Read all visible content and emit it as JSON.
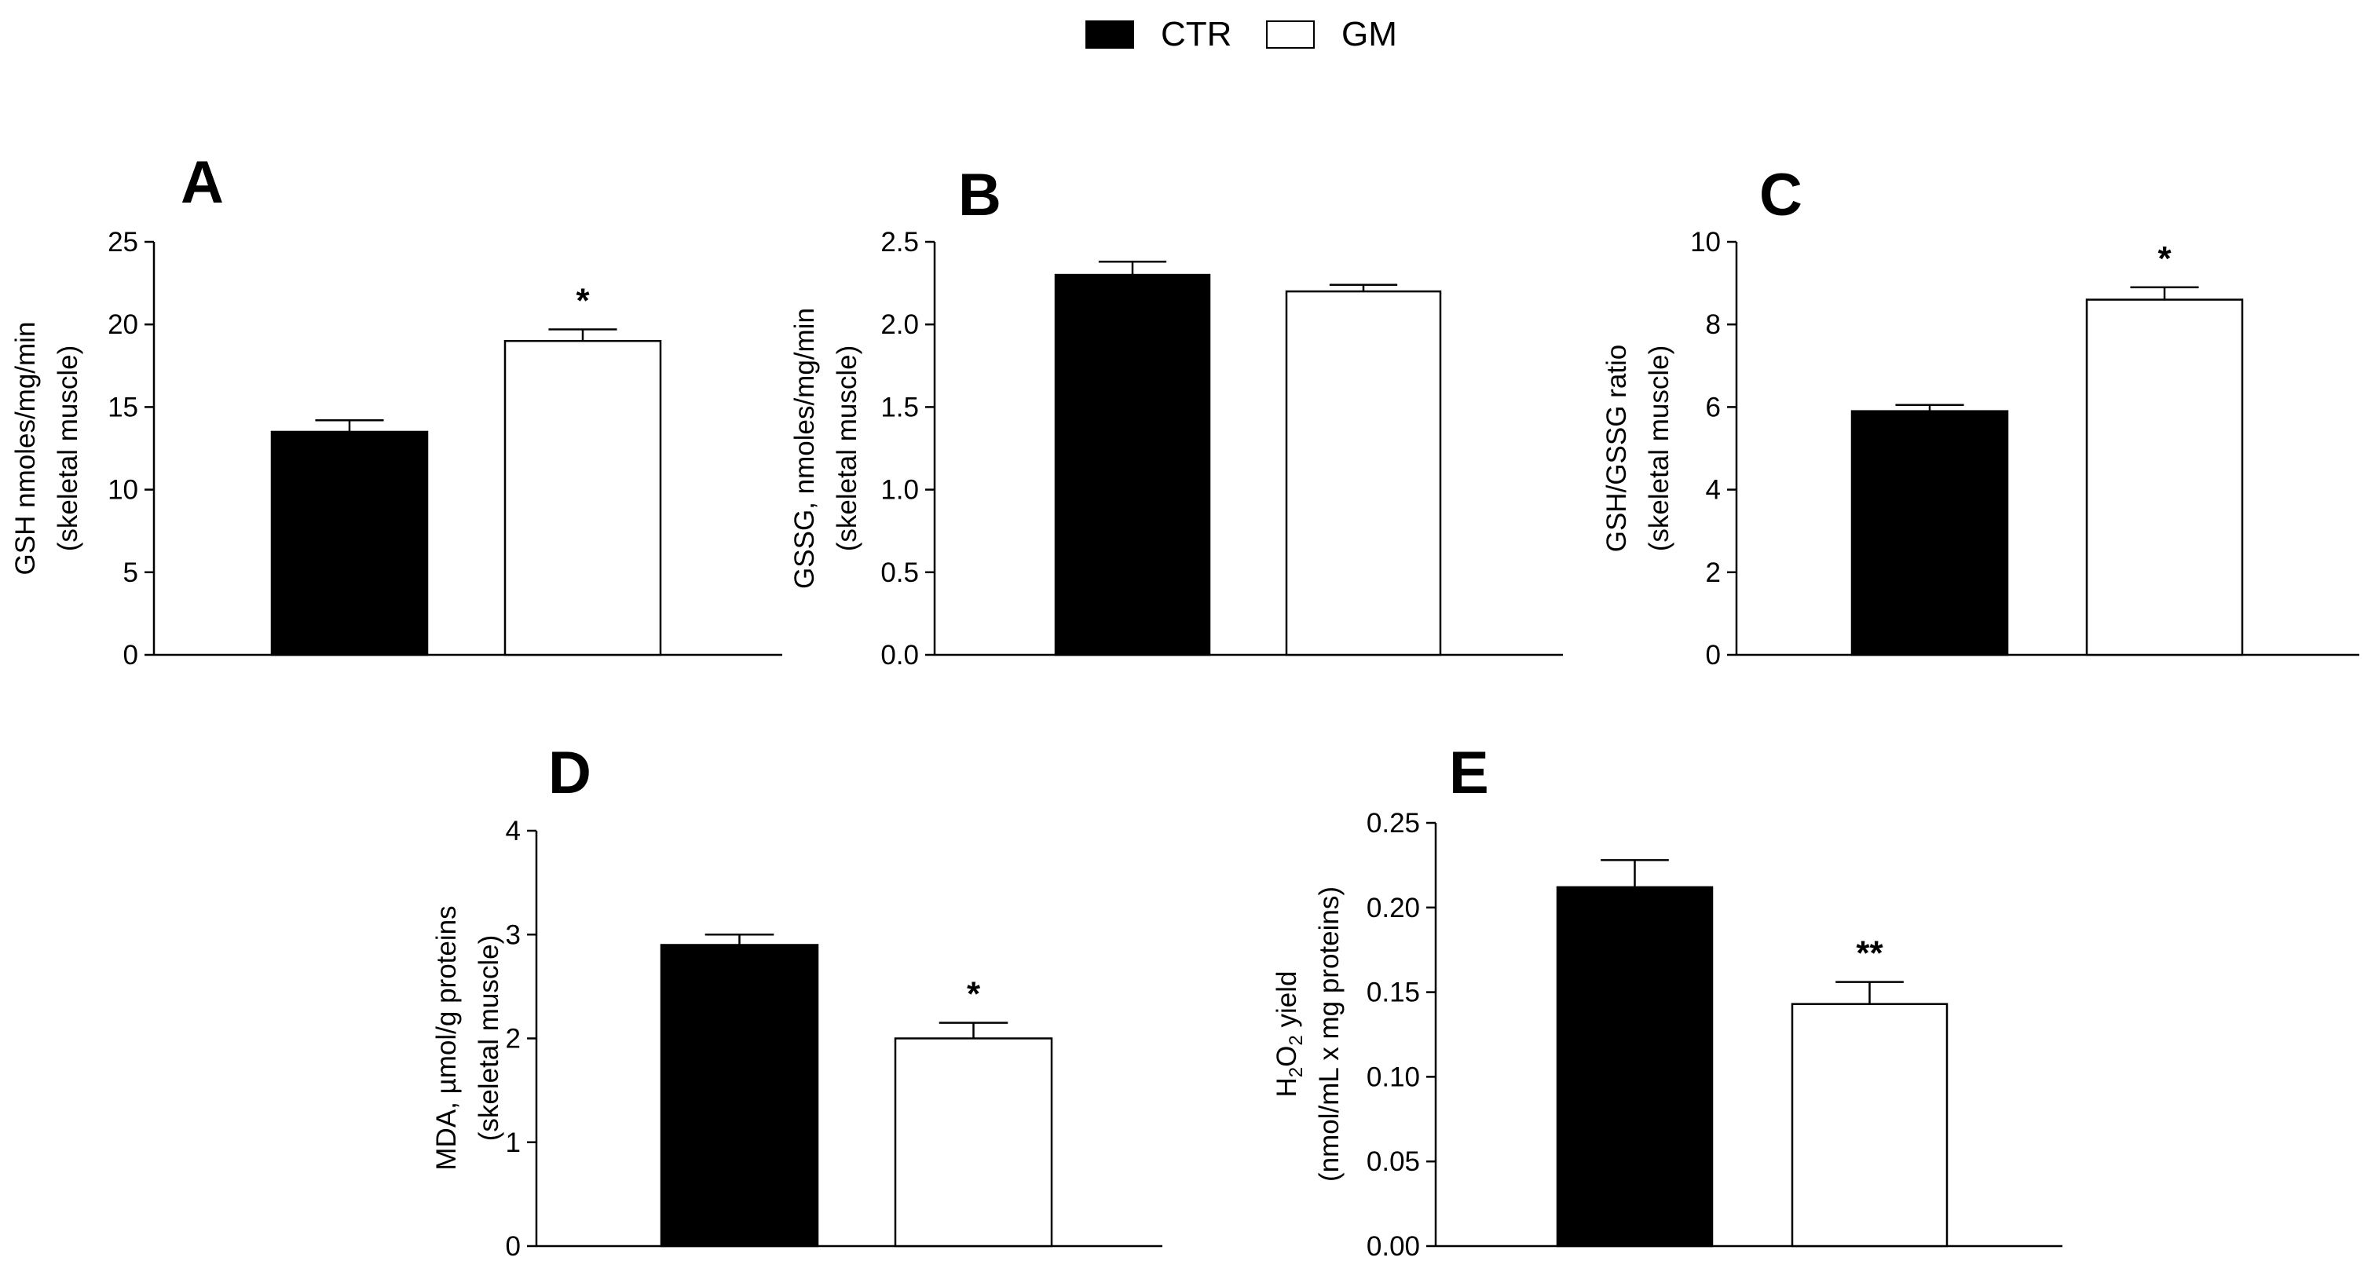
{
  "legend": [
    {
      "label": "CTR",
      "color": "#000000"
    },
    {
      "label": "GM",
      "color": "#ffffff"
    }
  ],
  "chart_data": [
    {
      "panel": "A",
      "type": "bar",
      "ylabel_lines": [
        "GSH nmoles/mg/min",
        "(skeletal muscle)"
      ],
      "ylim": [
        0,
        25
      ],
      "yticks": [
        "0",
        "5",
        "10",
        "15",
        "20",
        "25"
      ],
      "categories": [
        "CTR",
        "GM"
      ],
      "values": [
        13.5,
        19.0
      ],
      "errors": [
        0.7,
        0.7
      ],
      "significance": [
        "",
        "*"
      ]
    },
    {
      "panel": "B",
      "type": "bar",
      "ylabel_lines": [
        "GSSG, nmoles/mg/min",
        "(skeletal muscle)"
      ],
      "ylim": [
        0,
        2.5
      ],
      "yticks": [
        "0.0",
        "0.5",
        "1.0",
        "1.5",
        "2.0",
        "2.5"
      ],
      "categories": [
        "CTR",
        "GM"
      ],
      "values": [
        2.3,
        2.2
      ],
      "errors": [
        0.08,
        0.04
      ],
      "significance": [
        "",
        ""
      ]
    },
    {
      "panel": "C",
      "type": "bar",
      "ylabel_lines": [
        "GSH/GSSG ratio",
        "(skeletal muscle)"
      ],
      "ylim": [
        0,
        10
      ],
      "yticks": [
        "0",
        "2",
        "4",
        "6",
        "8",
        "10"
      ],
      "categories": [
        "CTR",
        "GM"
      ],
      "values": [
        5.9,
        8.6
      ],
      "errors": [
        0.15,
        0.3
      ],
      "significance": [
        "",
        "*"
      ]
    },
    {
      "panel": "D",
      "type": "bar",
      "ylabel_lines": [
        "MDA, µmol/g  proteins",
        "(skeletal muscle)"
      ],
      "ylim": [
        0,
        4
      ],
      "yticks": [
        "0",
        "1",
        "2",
        "3",
        "4"
      ],
      "categories": [
        "CTR",
        "GM"
      ],
      "values": [
        2.9,
        2.0
      ],
      "errors": [
        0.1,
        0.15
      ],
      "significance": [
        "",
        "*"
      ]
    },
    {
      "panel": "E",
      "type": "bar",
      "ylabel_lines": [
        "H2O2 yield",
        "(nmol/mL x mg proteins)"
      ],
      "ylim": [
        0,
        0.25
      ],
      "yticks": [
        "0.00",
        "0.05",
        "0.10",
        "0.15",
        "0.20",
        "0.25"
      ],
      "categories": [
        "CTR",
        "GM"
      ],
      "values": [
        0.212,
        0.143
      ],
      "errors": [
        0.016,
        0.013
      ],
      "significance": [
        "",
        "**"
      ]
    }
  ]
}
